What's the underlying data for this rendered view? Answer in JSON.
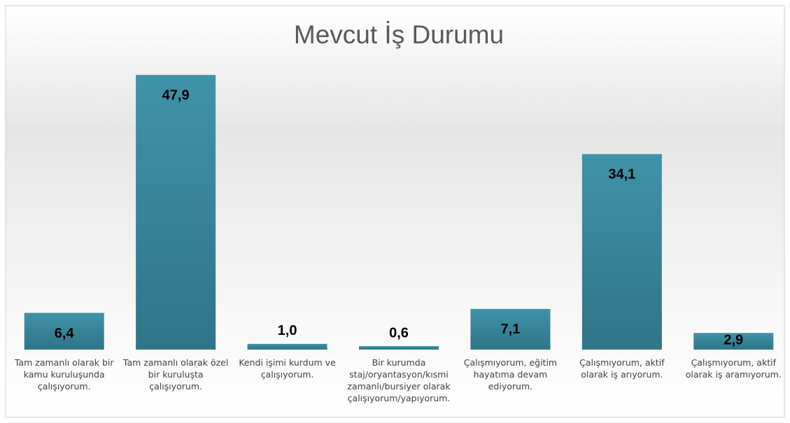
{
  "chart_data": {
    "type": "bar",
    "title": "Mevcut İş Durumu",
    "categories": [
      "Tam zamanlı olarak bir kamu kuruluşunda çalışıyorum.",
      "Tam zamanlı olarak özel bir kuruluşta çalışıyorum.",
      "Kendi işimi kurdum ve çalışıyorum.",
      "Bir kurumda staj/oryantasyon/kısmi zamanlı/bursiyer olarak çalışıyorum/yapıyorum.",
      "Çalışmıyorum, eğitim hayatıma devam ediyorum.",
      "Çalışmıyorum, aktif olarak iş arıyorum.",
      "Çalışmıyorum, aktif olarak iş aramıyorum."
    ],
    "values": [
      6.4,
      47.9,
      1.0,
      0.6,
      7.1,
      34.1,
      2.9
    ],
    "value_labels": [
      "6,4",
      "47,9",
      "1,0",
      "0,6",
      "7,1",
      "34,1",
      "2,9"
    ],
    "color": "#3b8a9e",
    "ylim": [
      0,
      50
    ]
  }
}
